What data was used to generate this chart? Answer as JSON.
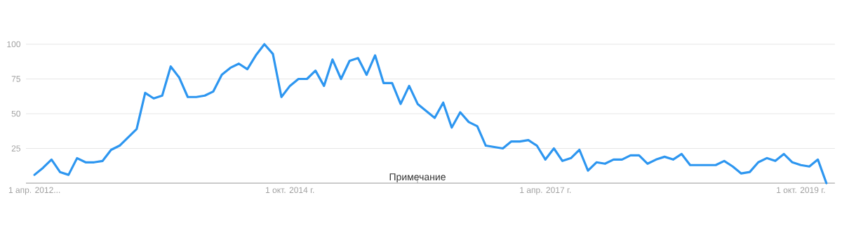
{
  "chart_data": {
    "type": "line",
    "x": [
      "2012-04",
      "2012-05",
      "2012-06",
      "2012-07",
      "2012-08",
      "2012-09",
      "2012-10",
      "2012-11",
      "2012-12",
      "2013-01",
      "2013-02",
      "2013-03",
      "2013-04",
      "2013-05",
      "2013-06",
      "2013-07",
      "2013-08",
      "2013-09",
      "2013-10",
      "2013-11",
      "2013-12",
      "2014-01",
      "2014-02",
      "2014-03",
      "2014-04",
      "2014-05",
      "2014-06",
      "2014-07",
      "2014-08",
      "2014-09",
      "2014-10",
      "2014-11",
      "2014-12",
      "2015-01",
      "2015-02",
      "2015-03",
      "2015-04",
      "2015-05",
      "2015-06",
      "2015-07",
      "2015-08",
      "2015-09",
      "2015-10",
      "2015-11",
      "2015-12",
      "2016-01",
      "2016-02",
      "2016-03",
      "2016-04",
      "2016-05",
      "2016-06",
      "2016-07",
      "2016-08",
      "2016-09",
      "2016-10",
      "2016-11",
      "2016-12",
      "2017-01",
      "2017-02",
      "2017-03",
      "2017-04",
      "2017-05",
      "2017-06",
      "2017-07",
      "2017-08",
      "2017-09",
      "2017-10",
      "2017-11",
      "2017-12",
      "2018-01",
      "2018-02",
      "2018-03",
      "2018-04",
      "2018-05",
      "2018-06",
      "2018-07",
      "2018-08",
      "2018-09",
      "2018-10",
      "2018-11",
      "2018-12",
      "2019-01",
      "2019-02",
      "2019-03",
      "2019-04",
      "2019-05",
      "2019-06",
      "2019-07",
      "2019-08",
      "2019-09",
      "2019-10",
      "2019-11",
      "2019-12",
      "2020-01"
    ],
    "series": [
      {
        "color": "#2d96f0",
        "values": [
          6,
          11,
          17,
          8,
          6,
          18,
          15,
          15,
          16,
          24,
          27,
          33,
          39,
          65,
          61,
          63,
          84,
          76,
          62,
          62,
          63,
          66,
          78,
          83,
          86,
          82,
          92,
          100,
          93,
          62,
          70,
          75,
          75,
          81,
          70,
          89,
          75,
          88,
          90,
          78,
          92,
          72,
          72,
          57,
          70,
          57,
          52,
          47,
          58,
          40,
          51,
          44,
          41,
          27,
          26,
          25,
          30,
          30,
          31,
          27,
          17,
          25,
          16,
          18,
          24,
          9,
          15,
          14,
          17,
          17,
          20,
          20,
          14,
          17,
          19,
          17,
          21,
          13,
          13,
          13,
          13,
          16,
          12,
          7,
          8,
          15,
          18,
          16,
          21,
          15,
          13,
          12,
          17,
          0
        ]
      }
    ],
    "xlim": [
      "2012-03",
      "2020-02"
    ],
    "xticks": [
      {
        "value": "2012-04",
        "label": "1 апр. 2012..."
      },
      {
        "value": "2014-10",
        "label": "1 окт. 2014 г."
      },
      {
        "value": "2017-04",
        "label": "1 апр. 2017 г."
      },
      {
        "value": "2019-10",
        "label": "1 окт. 2019 г."
      }
    ],
    "ylim": [
      0,
      100
    ],
    "yticks": [
      25,
      50,
      75,
      100
    ],
    "grid": "y",
    "marker": "none",
    "line_style": "solid",
    "annotations": [
      "Примечание"
    ]
  }
}
